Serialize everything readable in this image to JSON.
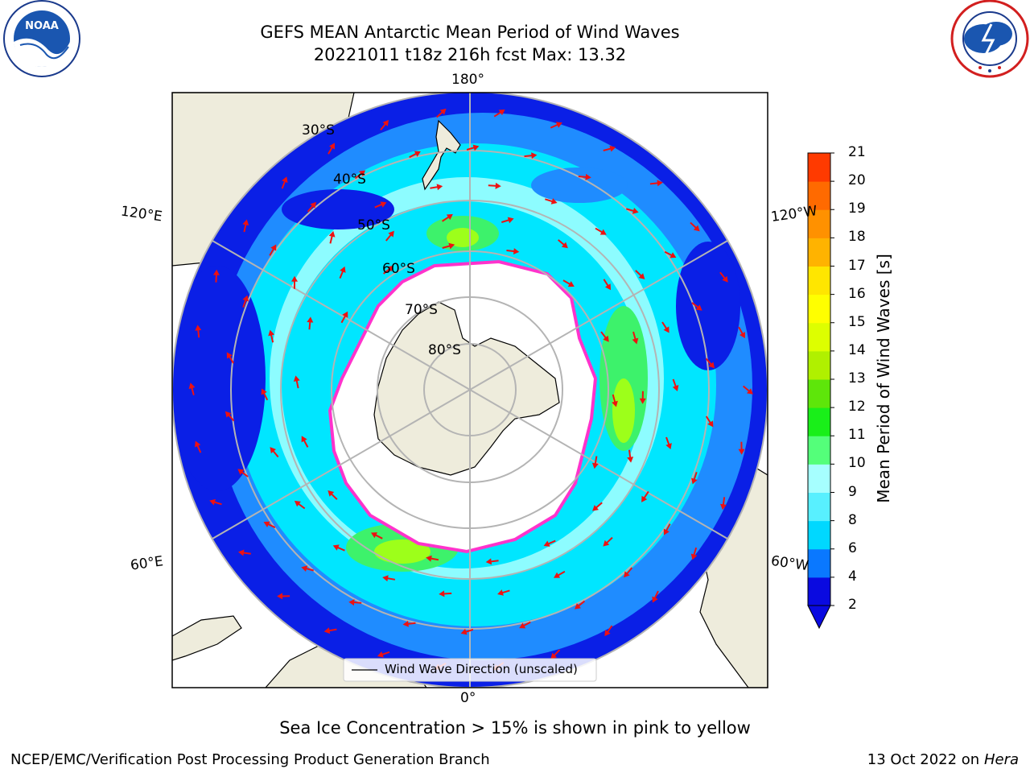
{
  "header": {
    "title_line1": "GEFS MEAN Antarctic Mean Period of Wind Waves",
    "title_line2": "20221011 t18z 216h fcst   Max: 13.32"
  },
  "logos": {
    "left": "noara-logo",
    "right": "nws-logo"
  },
  "map": {
    "projection": "south-polar-stereographic",
    "longitude_labels": {
      "top": "180°",
      "bottom": "0°",
      "left_upper": "120°E",
      "left_lower": "60°E",
      "right_upper": "120°W",
      "right_lower": "60°W"
    },
    "latitude_labels": [
      "30°S",
      "40°S",
      "50°S",
      "60°S",
      "70°S",
      "80°S"
    ],
    "legend": "Wind Wave Direction (unscaled)",
    "colors": {
      "ocean_dark": "#0a1fe6",
      "ocean_mid": "#1f8cff",
      "ocean_light": "#00e6ff",
      "ocean_pale": "#a6ffff",
      "green": "#3df26b",
      "lime": "#9dff1a",
      "ice_edge": "#ff33cc",
      "land": "#eeecdc",
      "arrow": "#ee1111"
    }
  },
  "colorbar": {
    "label": "Mean Period of Wind Waves [s]",
    "ticks": [
      "2",
      "4",
      "6",
      "8",
      "9",
      "10",
      "11",
      "12",
      "13",
      "14",
      "15",
      "16",
      "17",
      "18",
      "19",
      "20",
      "21"
    ],
    "colors": [
      "#0a0ae0",
      "#0a78ff",
      "#00d8ff",
      "#58f0ff",
      "#a6ffff",
      "#54ff7a",
      "#19ef19",
      "#5ee60a",
      "#b0f000",
      "#ddff00",
      "#ffff00",
      "#ffe600",
      "#ffb300",
      "#ff9100",
      "#ff6a00",
      "#ff3a00",
      "#ff0000"
    ]
  },
  "footer": {
    "note": "Sea Ice Concentration > 15% is shown in pink to yellow",
    "credit": "NCEP/EMC/Verification Post Processing Product Generation Branch",
    "date": "13 Oct 2022 on ",
    "host": "Hera"
  }
}
